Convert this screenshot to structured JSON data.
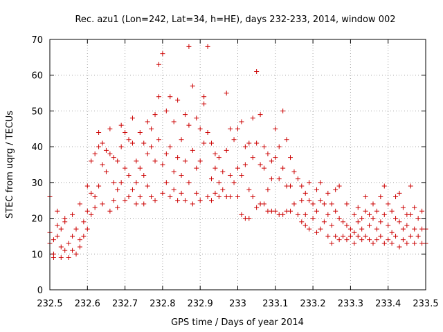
{
  "chart_data": {
    "type": "scatter",
    "title": "Rec. azu1 (Lon=242, Lat=34, h=HE), days 232-233, 2014, window 002",
    "xlabel": "GPS time / Days of year 2014",
    "ylabel": "STEC from uqrg / TECUs",
    "xlim": [
      232.5,
      233.5
    ],
    "ylim": [
      0,
      70
    ],
    "xticks": [
      "232.5",
      "232.6",
      "232.7",
      "232.8",
      "232.9",
      "233",
      "233.1",
      "233.2",
      "233.3",
      "233.4",
      "233.5"
    ],
    "yticks": [
      "0",
      "10",
      "20",
      "30",
      "40",
      "50",
      "60",
      "70"
    ],
    "grid": true,
    "marker": "+",
    "color": "#cc0000",
    "points": [
      [
        232.5,
        26
      ],
      [
        232.5,
        16
      ],
      [
        232.5,
        13
      ],
      [
        232.51,
        10
      ],
      [
        232.51,
        14
      ],
      [
        232.51,
        9
      ],
      [
        232.52,
        22
      ],
      [
        232.52,
        18
      ],
      [
        232.52,
        15
      ],
      [
        232.53,
        12
      ],
      [
        232.53,
        9
      ],
      [
        232.53,
        17
      ],
      [
        232.54,
        19
      ],
      [
        232.54,
        11
      ],
      [
        232.54,
        20
      ],
      [
        232.55,
        13
      ],
      [
        232.55,
        9
      ],
      [
        232.56,
        15
      ],
      [
        232.56,
        11
      ],
      [
        232.56,
        21
      ],
      [
        232.57,
        10
      ],
      [
        232.57,
        17
      ],
      [
        232.58,
        24
      ],
      [
        232.58,
        14
      ],
      [
        232.58,
        12
      ],
      [
        232.59,
        19
      ],
      [
        232.59,
        15
      ],
      [
        232.6,
        29
      ],
      [
        232.6,
        22
      ],
      [
        232.6,
        17
      ],
      [
        232.61,
        27
      ],
      [
        232.61,
        21
      ],
      [
        232.61,
        36
      ],
      [
        232.62,
        38
      ],
      [
        232.62,
        23
      ],
      [
        232.62,
        26
      ],
      [
        232.63,
        40
      ],
      [
        232.63,
        44
      ],
      [
        232.63,
        29
      ],
      [
        232.64,
        41
      ],
      [
        232.64,
        35
      ],
      [
        232.64,
        24
      ],
      [
        232.65,
        39
      ],
      [
        232.65,
        33
      ],
      [
        232.66,
        45
      ],
      [
        232.66,
        38
      ],
      [
        232.66,
        22
      ],
      [
        232.67,
        37
      ],
      [
        232.67,
        30
      ],
      [
        232.67,
        25
      ],
      [
        232.68,
        36
      ],
      [
        232.68,
        28
      ],
      [
        232.68,
        23
      ],
      [
        232.69,
        46
      ],
      [
        232.69,
        40
      ],
      [
        232.69,
        30
      ],
      [
        232.7,
        44
      ],
      [
        232.7,
        34
      ],
      [
        232.7,
        25
      ],
      [
        232.71,
        42
      ],
      [
        232.71,
        32
      ],
      [
        232.71,
        26
      ],
      [
        232.72,
        41
      ],
      [
        232.72,
        48
      ],
      [
        232.72,
        28
      ],
      [
        232.73,
        36
      ],
      [
        232.73,
        30
      ],
      [
        232.73,
        24
      ],
      [
        232.74,
        44
      ],
      [
        232.74,
        34
      ],
      [
        232.74,
        26
      ],
      [
        232.75,
        41
      ],
      [
        232.75,
        32
      ],
      [
        232.75,
        24
      ],
      [
        232.76,
        47
      ],
      [
        232.76,
        38
      ],
      [
        232.76,
        29
      ],
      [
        232.77,
        45
      ],
      [
        232.77,
        40
      ],
      [
        232.77,
        26
      ],
      [
        232.78,
        49
      ],
      [
        232.78,
        36
      ],
      [
        232.78,
        25
      ],
      [
        232.79,
        63
      ],
      [
        232.79,
        54
      ],
      [
        232.79,
        42
      ],
      [
        232.8,
        66
      ],
      [
        232.8,
        35
      ],
      [
        232.8,
        27
      ],
      [
        232.81,
        50
      ],
      [
        232.81,
        38
      ],
      [
        232.81,
        30
      ],
      [
        232.82,
        54
      ],
      [
        232.82,
        40
      ],
      [
        232.82,
        26
      ],
      [
        232.83,
        47
      ],
      [
        232.83,
        33
      ],
      [
        232.83,
        28
      ],
      [
        232.84,
        53
      ],
      [
        232.84,
        37
      ],
      [
        232.84,
        25
      ],
      [
        232.85,
        42
      ],
      [
        232.85,
        32
      ],
      [
        232.85,
        27
      ],
      [
        232.86,
        49
      ],
      [
        232.86,
        36
      ],
      [
        232.86,
        25
      ],
      [
        232.87,
        68
      ],
      [
        232.87,
        46
      ],
      [
        232.87,
        30
      ],
      [
        232.88,
        57
      ],
      [
        232.88,
        39
      ],
      [
        232.88,
        24
      ],
      [
        232.89,
        48
      ],
      [
        232.89,
        34
      ],
      [
        232.89,
        27
      ],
      [
        232.9,
        45
      ],
      [
        232.9,
        36
      ],
      [
        232.9,
        25
      ],
      [
        232.91,
        54
      ],
      [
        232.91,
        52
      ],
      [
        232.91,
        41
      ],
      [
        232.92,
        68
      ],
      [
        232.92,
        44
      ],
      [
        232.92,
        26
      ],
      [
        232.93,
        41
      ],
      [
        232.93,
        31
      ],
      [
        232.93,
        25
      ],
      [
        232.94,
        38
      ],
      [
        232.94,
        34
      ],
      [
        232.94,
        27
      ],
      [
        232.95,
        37
      ],
      [
        232.95,
        30
      ],
      [
        232.95,
        26
      ],
      [
        232.96,
        33
      ],
      [
        232.96,
        28
      ],
      [
        232.97,
        55
      ],
      [
        232.97,
        39
      ],
      [
        232.97,
        26
      ],
      [
        232.98,
        45
      ],
      [
        232.98,
        32
      ],
      [
        232.98,
        26
      ],
      [
        232.99,
        42
      ],
      [
        232.99,
        30
      ],
      [
        233.0,
        45
      ],
      [
        233.0,
        34
      ],
      [
        233.0,
        26
      ],
      [
        233.01,
        47
      ],
      [
        233.01,
        32
      ],
      [
        233.01,
        21
      ],
      [
        233.02,
        40
      ],
      [
        233.02,
        35
      ],
      [
        233.02,
        20
      ],
      [
        233.03,
        41
      ],
      [
        233.03,
        28
      ],
      [
        233.03,
        20
      ],
      [
        233.04,
        48
      ],
      [
        233.04,
        37
      ],
      [
        233.04,
        26
      ],
      [
        233.05,
        61
      ],
      [
        233.05,
        41
      ],
      [
        233.05,
        23
      ],
      [
        233.06,
        49
      ],
      [
        233.06,
        35
      ],
      [
        233.06,
        24
      ],
      [
        233.07,
        40
      ],
      [
        233.07,
        34
      ],
      [
        233.07,
        24
      ],
      [
        233.08,
        38
      ],
      [
        233.08,
        28
      ],
      [
        233.08,
        22
      ],
      [
        233.09,
        36
      ],
      [
        233.09,
        31
      ],
      [
        233.09,
        22
      ],
      [
        233.1,
        45
      ],
      [
        233.1,
        37
      ],
      [
        233.1,
        22
      ],
      [
        233.11,
        40
      ],
      [
        233.11,
        31
      ],
      [
        233.11,
        21
      ],
      [
        233.12,
        50
      ],
      [
        233.12,
        34
      ],
      [
        233.12,
        21
      ],
      [
        233.13,
        42
      ],
      [
        233.13,
        29
      ],
      [
        233.13,
        22
      ],
      [
        233.14,
        37
      ],
      [
        233.14,
        29
      ],
      [
        233.14,
        22
      ],
      [
        233.15,
        33
      ],
      [
        233.15,
        24
      ],
      [
        233.16,
        31
      ],
      [
        233.16,
        21
      ],
      [
        233.17,
        29
      ],
      [
        233.17,
        25
      ],
      [
        233.17,
        19
      ],
      [
        233.18,
        27
      ],
      [
        233.18,
        21
      ],
      [
        233.18,
        18
      ],
      [
        233.19,
        30
      ],
      [
        233.19,
        25
      ],
      [
        233.19,
        17
      ],
      [
        233.2,
        24
      ],
      [
        233.2,
        20
      ],
      [
        233.21,
        28
      ],
      [
        233.21,
        22
      ],
      [
        233.21,
        16
      ],
      [
        233.22,
        30
      ],
      [
        233.22,
        25
      ],
      [
        233.22,
        17
      ],
      [
        233.23,
        24
      ],
      [
        233.23,
        19
      ],
      [
        233.24,
        27
      ],
      [
        233.24,
        21
      ],
      [
        233.24,
        15
      ],
      [
        233.25,
        24
      ],
      [
        233.25,
        18
      ],
      [
        233.25,
        13
      ],
      [
        233.26,
        28
      ],
      [
        233.26,
        22
      ],
      [
        233.26,
        15
      ],
      [
        233.27,
        29
      ],
      [
        233.27,
        20
      ],
      [
        233.27,
        14
      ],
      [
        233.28,
        19
      ],
      [
        233.28,
        15
      ],
      [
        233.29,
        24
      ],
      [
        233.29,
        18
      ],
      [
        233.29,
        14
      ],
      [
        233.3,
        17
      ],
      [
        233.3,
        15
      ],
      [
        233.31,
        21
      ],
      [
        233.31,
        16
      ],
      [
        233.31,
        13
      ],
      [
        233.32,
        23
      ],
      [
        233.32,
        19
      ],
      [
        233.32,
        15
      ],
      [
        233.33,
        20
      ],
      [
        233.33,
        17
      ],
      [
        233.33,
        14
      ],
      [
        233.34,
        26
      ],
      [
        233.34,
        22
      ],
      [
        233.34,
        15
      ],
      [
        233.35,
        21
      ],
      [
        233.35,
        18
      ],
      [
        233.35,
        14
      ],
      [
        233.36,
        24
      ],
      [
        233.36,
        20
      ],
      [
        233.36,
        13
      ],
      [
        233.37,
        22
      ],
      [
        233.37,
        17
      ],
      [
        233.37,
        14
      ],
      [
        233.38,
        26
      ],
      [
        233.38,
        19
      ],
      [
        233.38,
        15
      ],
      [
        233.39,
        29
      ],
      [
        233.39,
        21
      ],
      [
        233.39,
        13
      ],
      [
        233.4,
        24
      ],
      [
        233.4,
        18
      ],
      [
        233.4,
        14
      ],
      [
        233.41,
        22
      ],
      [
        233.41,
        16
      ],
      [
        233.41,
        13
      ],
      [
        233.42,
        26
      ],
      [
        233.42,
        20
      ],
      [
        233.42,
        15
      ],
      [
        233.43,
        27
      ],
      [
        233.43,
        19
      ],
      [
        233.43,
        12
      ],
      [
        233.44,
        23
      ],
      [
        233.44,
        17
      ],
      [
        233.44,
        14
      ],
      [
        233.45,
        21
      ],
      [
        233.45,
        18
      ],
      [
        233.45,
        13
      ],
      [
        233.46,
        29
      ],
      [
        233.46,
        21
      ],
      [
        233.46,
        15
      ],
      [
        233.47,
        23
      ],
      [
        233.47,
        17
      ],
      [
        233.47,
        13
      ],
      [
        233.48,
        20
      ],
      [
        233.48,
        15
      ],
      [
        233.49,
        22
      ],
      [
        233.49,
        17
      ],
      [
        233.49,
        13
      ],
      [
        233.5,
        17
      ],
      [
        233.5,
        13
      ]
    ]
  }
}
